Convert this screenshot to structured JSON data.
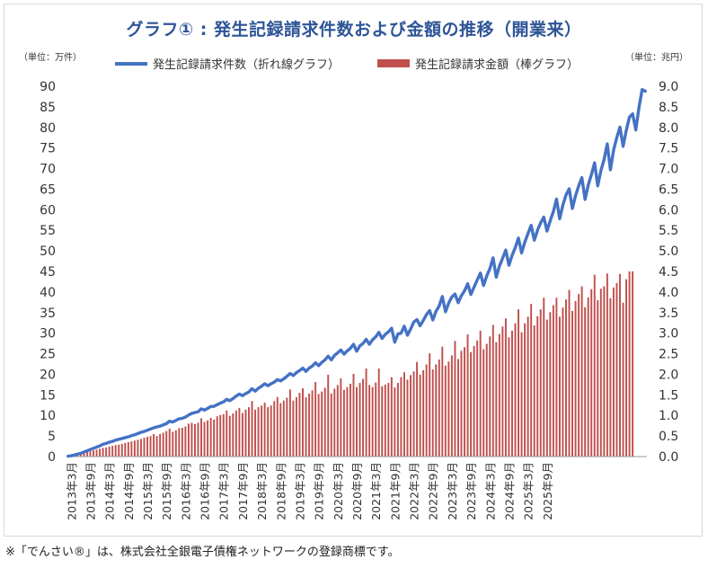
{
  "title": "グラフ① : 発生記録請求件数および金額の推移（開業来）",
  "unit_left": "（単位：万件）",
  "unit_right": "（単位：兆円）",
  "legend": {
    "line_label": "発生記録請求件数（折れ線グラフ）",
    "bar_label": "発生記録請求金額（棒グラフ）"
  },
  "footnote": "※「でんさい®」は、株式会社全銀電子債権ネットワークの登録商標です。",
  "colors": {
    "line": "#4472c4",
    "bar": "#c0504d",
    "title": "#2e5597"
  },
  "chart_data": {
    "type": "bar+line",
    "x_start": "2013年2月",
    "x_end": "2025年11月",
    "xtick_labels": [
      "2013年3月",
      "2013年9月",
      "2014年3月",
      "2014年9月",
      "2015年3月",
      "2015年9月",
      "2016年3月",
      "2016年9月",
      "2017年3月",
      "2017年9月",
      "2018年3月",
      "2018年9月",
      "2019年3月",
      "2019年9月",
      "2020年3月",
      "2020年9月",
      "2021年3月",
      "2021年9月",
      "2022年3月",
      "2022年9月",
      "2023年3月",
      "2023年9月",
      "2024年3月",
      "2024年9月",
      "2025年3月",
      "2025年9月"
    ],
    "y_left": {
      "label": "万件",
      "lim": [
        0,
        90
      ],
      "ticks": [
        0,
        5,
        10,
        15,
        20,
        25,
        30,
        35,
        40,
        45,
        50,
        55,
        60,
        65,
        70,
        75,
        80,
        85,
        90
      ]
    },
    "y_right": {
      "label": "兆円",
      "lim": [
        0,
        9.0
      ],
      "ticks": [
        "0.0",
        "0.5",
        "1.0",
        "1.5",
        "2.0",
        "2.5",
        "3.0",
        "3.5",
        "4.0",
        "4.5",
        "5.0",
        "5.5",
        "6.0",
        "6.5",
        "7.0",
        "7.5",
        "8.0",
        "8.5",
        "9.0"
      ]
    },
    "grid": false,
    "legend_position": "top-center",
    "series": [
      {
        "name": "発生記録請求件数（折れ線グラフ）",
        "type": "line",
        "axis": "left",
        "values": [
          0.1,
          0.2,
          0.4,
          0.6,
          0.8,
          1.1,
          1.4,
          1.7,
          2.0,
          2.3,
          2.6,
          3.0,
          3.2,
          3.5,
          3.7,
          4.0,
          4.2,
          4.4,
          4.6,
          4.8,
          5.1,
          5.3,
          5.6,
          5.9,
          6.1,
          6.4,
          6.7,
          7.0,
          7.2,
          7.4,
          7.7,
          8.0,
          8.6,
          8.4,
          8.8,
          9.2,
          9.3,
          9.6,
          10.1,
          10.5,
          10.7,
          10.9,
          11.6,
          11.3,
          11.7,
          12.2,
          12.2,
          12.6,
          13.0,
          13.3,
          13.9,
          13.6,
          14.1,
          14.7,
          15.2,
          14.8,
          15.3,
          15.7,
          16.5,
          15.9,
          16.6,
          17.1,
          17.7,
          17.2,
          17.7,
          18.1,
          18.7,
          18.4,
          18.9,
          19.5,
          20.2,
          19.7,
          20.4,
          20.9,
          21.5,
          20.7,
          21.5,
          22.0,
          22.8,
          22.1,
          22.9,
          23.5,
          24.4,
          23.5,
          24.6,
          25.2,
          25.9,
          24.9,
          25.7,
          26.3,
          27.3,
          25.6,
          26.9,
          27.5,
          28.5,
          27.3,
          28.4,
          29.1,
          30.2,
          28.7,
          29.7,
          30.3,
          31.2,
          27.8,
          29.8,
          30.0,
          31.7,
          29.5,
          31.0,
          32.7,
          33.3,
          31.8,
          33.1,
          34.5,
          35.5,
          33.2,
          35.3,
          36.6,
          38.9,
          35.2,
          37.3,
          38.8,
          39.5,
          37.4,
          39.1,
          40.3,
          42.0,
          39.4,
          41.2,
          42.9,
          44.6,
          41.6,
          43.9,
          45.7,
          48.3,
          43.6,
          46.3,
          48.2,
          50.2,
          46.5,
          48.9,
          50.8,
          53.1,
          49.5,
          52.1,
          54.2,
          56.2,
          52.6,
          55.0,
          56.8,
          58.2,
          54.8,
          57.3,
          59.5,
          62.6,
          57.8,
          61.1,
          63.6,
          65.1,
          60.3,
          63.4,
          65.8,
          67.8,
          62.5,
          66.0,
          68.5,
          71.4,
          65.8,
          69.5,
          72.2,
          76.0,
          69.7,
          74.5,
          77.5,
          80.1,
          75.4,
          79.3,
          82.5,
          83.3,
          79.4,
          84.8,
          89.2,
          88.8
        ]
      },
      {
        "name": "発生記録請求金額（棒グラフ）",
        "type": "bar",
        "axis": "right",
        "values": [
          0.01,
          0.02,
          0.03,
          0.05,
          0.07,
          0.09,
          0.11,
          0.13,
          0.15,
          0.17,
          0.19,
          0.21,
          0.22,
          0.24,
          0.26,
          0.28,
          0.29,
          0.31,
          0.33,
          0.35,
          0.37,
          0.39,
          0.41,
          0.43,
          0.46,
          0.48,
          0.5,
          0.55,
          0.5,
          0.55,
          0.58,
          0.62,
          0.68,
          0.6,
          0.64,
          0.69,
          0.7,
          0.73,
          0.8,
          0.82,
          0.79,
          0.82,
          0.93,
          0.84,
          0.88,
          0.94,
          0.9,
          0.98,
          1.01,
          1.03,
          1.12,
          0.99,
          1.05,
          1.12,
          1.18,
          1.06,
          1.14,
          1.2,
          1.35,
          1.14,
          1.2,
          1.24,
          1.31,
          1.2,
          1.24,
          1.35,
          1.45,
          1.3,
          1.36,
          1.43,
          1.63,
          1.36,
          1.44,
          1.55,
          1.66,
          1.44,
          1.53,
          1.61,
          1.81,
          1.52,
          1.58,
          1.67,
          1.99,
          1.53,
          1.65,
          1.74,
          1.9,
          1.62,
          1.69,
          1.77,
          2.01,
          1.69,
          1.79,
          1.89,
          2.14,
          1.74,
          1.69,
          1.8,
          2.14,
          1.71,
          1.75,
          1.79,
          1.93,
          1.68,
          1.79,
          1.93,
          2.05,
          1.87,
          1.98,
          2.07,
          2.3,
          1.99,
          2.1,
          2.24,
          2.51,
          2.12,
          2.24,
          2.36,
          2.67,
          2.21,
          2.31,
          2.46,
          2.81,
          2.37,
          2.57,
          2.66,
          2.97,
          2.54,
          2.69,
          2.82,
          3.06,
          2.61,
          2.74,
          2.92,
          3.2,
          2.78,
          2.98,
          3.16,
          3.36,
          2.9,
          3.06,
          3.24,
          3.58,
          3.02,
          3.24,
          3.4,
          3.71,
          3.19,
          3.41,
          3.58,
          3.86,
          3.33,
          3.51,
          3.68,
          3.86,
          3.4,
          3.62,
          3.82,
          4.05,
          3.54,
          3.78,
          3.95,
          4.14,
          3.63,
          3.87,
          4.07,
          4.42,
          3.8,
          4.08,
          4.14,
          4.45,
          3.85,
          4.11,
          4.22,
          4.44,
          3.74,
          4.31,
          4.5,
          4.5
        ]
      }
    ]
  }
}
